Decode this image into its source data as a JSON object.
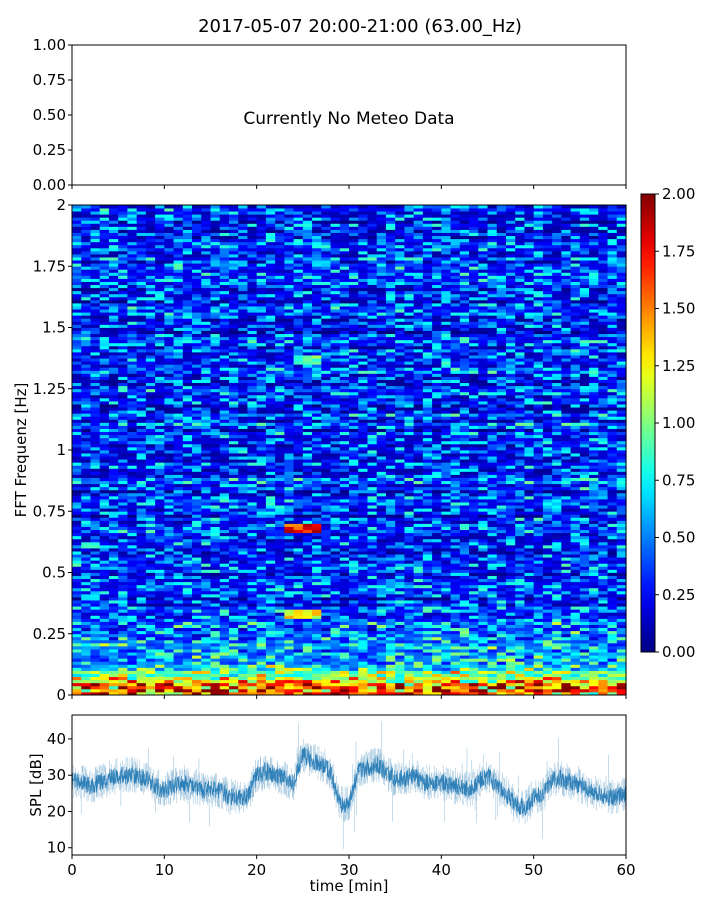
{
  "title": "2017-05-07 20:00-21:00 (63.00_Hz)",
  "chart_data": [
    {
      "type": "text-panel",
      "annotation": "Currently No Meteo Data",
      "ylim": [
        0,
        1
      ],
      "yticks": [
        "0.00",
        "0.25",
        "0.50",
        "0.75",
        "1.00"
      ],
      "xlim": [
        0,
        60
      ],
      "xticks": [
        0,
        10,
        20,
        30,
        40,
        50,
        60
      ]
    },
    {
      "type": "heatmap",
      "ylabel": "FFT Frequenz [Hz]",
      "xlim": [
        0,
        60
      ],
      "ylim": [
        0,
        2
      ],
      "yticks": [
        "0",
        "0.25",
        "0.5",
        "0.75",
        "1",
        "1.25",
        "1.5",
        "1.75",
        "2"
      ],
      "colormap": "jet",
      "clim": [
        0,
        2
      ],
      "colorbar_ticks": [
        "0.00",
        "0.25",
        "0.50",
        "0.75",
        "1.00",
        "1.25",
        "1.50",
        "1.75",
        "2.00"
      ],
      "typical_level": 0.3,
      "low_frequency_level": 1.5,
      "features": [
        {
          "time": [
            23.5,
            27
          ],
          "freq": 0.68,
          "value": 1.8
        },
        {
          "time": [
            23.5,
            27
          ],
          "freq": 0.33,
          "value": 1.3
        },
        {
          "time": [
            24,
            27
          ],
          "freq": 1.37,
          "value": 1.0
        }
      ]
    },
    {
      "type": "line",
      "xlabel": "time [min]",
      "ylabel": "SPL [dB]",
      "xlim": [
        0,
        60
      ],
      "ylim": [
        8,
        46.6
      ],
      "xticks": [
        "0",
        "10",
        "20",
        "30",
        "40",
        "50",
        "60"
      ],
      "yticks": [
        "10",
        "20",
        "30",
        "40"
      ],
      "color": "#1f77b4",
      "x": [
        0,
        1,
        2,
        3,
        4,
        5,
        6,
        7,
        8,
        9,
        10,
        11,
        12,
        13,
        14,
        15,
        16,
        17,
        18,
        19,
        20,
        21,
        22,
        23,
        24,
        25,
        26,
        27,
        28,
        29,
        30,
        31,
        32,
        33,
        34,
        35,
        36,
        37,
        38,
        39,
        40,
        41,
        42,
        43,
        44,
        45,
        46,
        47,
        48,
        49,
        50,
        51,
        52,
        53,
        54,
        55,
        56,
        57,
        58,
        59,
        60
      ],
      "y": [
        29,
        28,
        27,
        28,
        29,
        30,
        30,
        30,
        29,
        27,
        26,
        27,
        28,
        27,
        26,
        26,
        26,
        24,
        24,
        24,
        30,
        31,
        30,
        29,
        28,
        36,
        34,
        33,
        31,
        22,
        22,
        31,
        32,
        33,
        31,
        29,
        29,
        30,
        28,
        28,
        28,
        27,
        27,
        26,
        28,
        30,
        27,
        25,
        22,
        21,
        24,
        25,
        29,
        29,
        28,
        27,
        26,
        25,
        24,
        24,
        25
      ]
    }
  ]
}
